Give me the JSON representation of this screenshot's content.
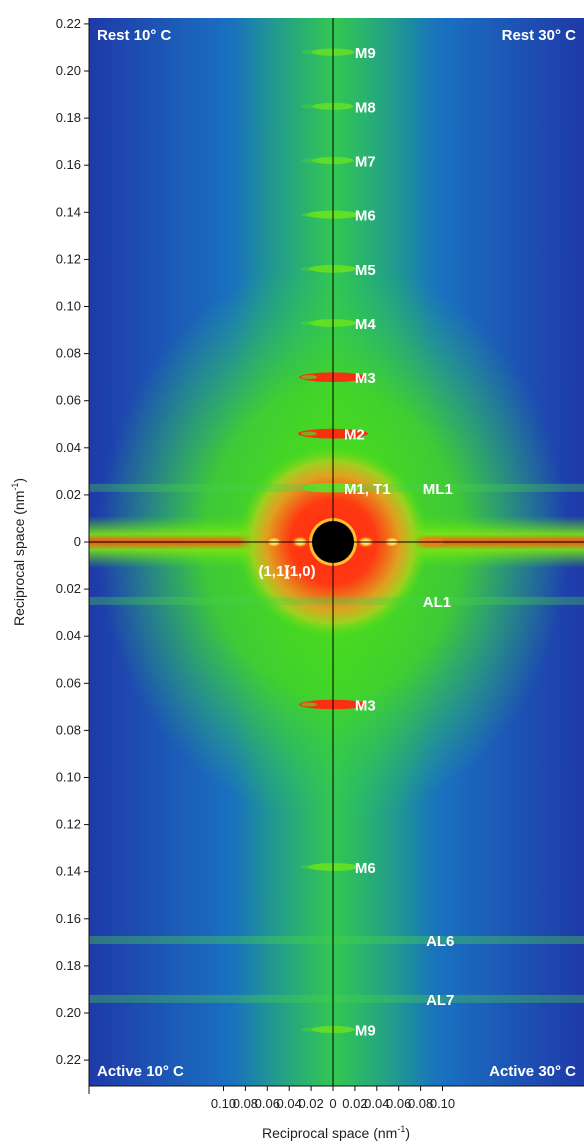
{
  "chart_data": {
    "type": "heatmap",
    "title": "",
    "xlabel": "Reciprocal space (nm",
    "xlabel_sup": "-1",
    "xlabel_tail": ")",
    "ylabel": "Reciprocal space (nm",
    "ylabel_sup": "-1",
    "ylabel_tail": ")",
    "xlim": [
      -0.11,
      0.11
    ],
    "ylim": [
      -0.22,
      0.22
    ],
    "x_ticks": [
      {
        "value": -0.1,
        "label": "0.10"
      },
      {
        "value": -0.08,
        "label": "0.08"
      },
      {
        "value": -0.06,
        "label": "0.06"
      },
      {
        "value": -0.04,
        "label": "0.04"
      },
      {
        "value": -0.02,
        "label": "0.02"
      },
      {
        "value": 0,
        "label": "0"
      },
      {
        "value": 0.02,
        "label": "0.02"
      },
      {
        "value": 0.04,
        "label": "0.04"
      },
      {
        "value": 0.06,
        "label": "0.06"
      },
      {
        "value": 0.08,
        "label": "0.08"
      },
      {
        "value": 0.1,
        "label": "0.10"
      }
    ],
    "y_ticks": [
      {
        "value": 0.22,
        "label": "0.22"
      },
      {
        "value": 0.2,
        "label": "0.20"
      },
      {
        "value": 0.18,
        "label": "0.18"
      },
      {
        "value": 0.16,
        "label": "0.16"
      },
      {
        "value": 0.14,
        "label": "0.14"
      },
      {
        "value": 0.12,
        "label": "0.12"
      },
      {
        "value": 0.1,
        "label": "0.10"
      },
      {
        "value": 0.08,
        "label": "0.08"
      },
      {
        "value": 0.06,
        "label": "0.06"
      },
      {
        "value": 0.04,
        "label": "0.04"
      },
      {
        "value": 0.02,
        "label": "0.02"
      },
      {
        "value": 0,
        "label": "0"
      },
      {
        "value": -0.02,
        "label": "0.02"
      },
      {
        "value": -0.04,
        "label": "0.04"
      },
      {
        "value": -0.06,
        "label": "0.06"
      },
      {
        "value": -0.08,
        "label": "0.08"
      },
      {
        "value": -0.1,
        "label": "0.10"
      },
      {
        "value": -0.12,
        "label": "0.12"
      },
      {
        "value": -0.14,
        "label": "0.14"
      },
      {
        "value": -0.16,
        "label": "0.16"
      },
      {
        "value": -0.18,
        "label": "0.18"
      },
      {
        "value": -0.2,
        "label": "0.20"
      },
      {
        "value": -0.22,
        "label": "0.22"
      }
    ],
    "quadrant_labels": [
      {
        "id": "rest-10",
        "text": "Rest 10° C",
        "corner": "top-left"
      },
      {
        "id": "rest-30",
        "text": "Rest 30° C",
        "corner": "top-right"
      },
      {
        "id": "active-10",
        "text": "Active 10° C",
        "corner": "bottom-left"
      },
      {
        "id": "active-30",
        "text": "Active 30° C",
        "corner": "bottom-right"
      }
    ],
    "reflections": [
      {
        "label": "M9",
        "x": 0.02,
        "y": 0.208,
        "strength": 0.35
      },
      {
        "label": "M8",
        "x": 0.02,
        "y": 0.185,
        "strength": 0.3
      },
      {
        "label": "M7",
        "x": 0.02,
        "y": 0.162,
        "strength": 0.3
      },
      {
        "label": "M6",
        "x": 0.02,
        "y": 0.139,
        "strength": 0.55
      },
      {
        "label": "M5",
        "x": 0.02,
        "y": 0.116,
        "strength": 0.45
      },
      {
        "label": "M4",
        "x": 0.02,
        "y": 0.093,
        "strength": 0.45
      },
      {
        "label": "M3",
        "x": 0.02,
        "y": 0.07,
        "strength": 0.9
      },
      {
        "label": "M2",
        "x": 0.01,
        "y": 0.046,
        "strength": 0.95
      },
      {
        "label": "M1, T1",
        "x": 0.01,
        "y": 0.023,
        "strength": 0.8
      },
      {
        "label": "ML1",
        "x": 0.082,
        "y": 0.023,
        "strength": 0.25
      },
      {
        "label": "AL1",
        "x": 0.082,
        "y": -0.025,
        "strength": 0.25
      },
      {
        "label": "M3",
        "x": 0.02,
        "y": -0.069,
        "strength": 0.9
      },
      {
        "label": "M6",
        "x": 0.02,
        "y": -0.138,
        "strength": 0.5
      },
      {
        "label": "AL6",
        "x": 0.085,
        "y": -0.169,
        "strength": 0.35
      },
      {
        "label": "AL7",
        "x": 0.085,
        "y": -0.194,
        "strength": 0.3
      },
      {
        "label": "M9",
        "x": 0.02,
        "y": -0.207,
        "strength": 0.35
      }
    ],
    "equatorial_reflections": [
      {
        "label": "(1,1)",
        "x": -0.054,
        "y": 0
      },
      {
        "label": "(1,0)",
        "x": -0.03,
        "y": 0
      }
    ],
    "colormap": [
      "#1f3fb4",
      "#1a78c8",
      "#22c87a",
      "#52e012",
      "#c7e30a",
      "#ff2e12",
      "#ffd633"
    ],
    "beamstop_color": "#000000",
    "crosshair_color": "#000000",
    "grid": false
  }
}
